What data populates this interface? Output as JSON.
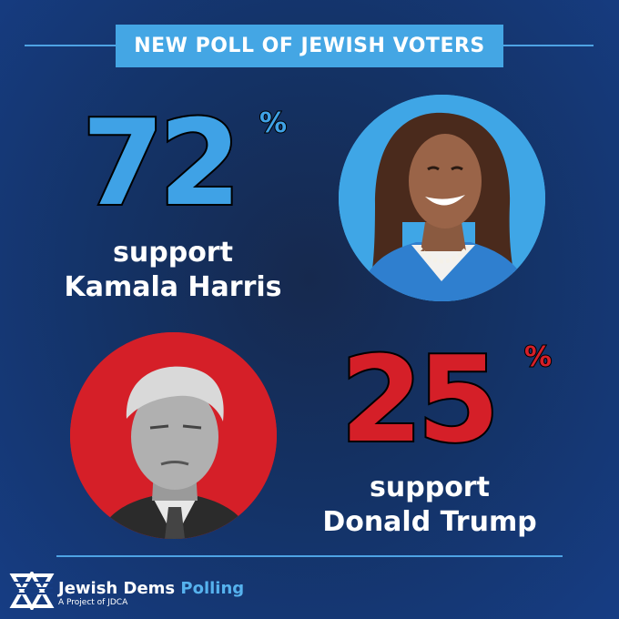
{
  "banner": {
    "title": "NEW POLL OF JEWISH VOTERS"
  },
  "harris": {
    "value": "72",
    "percent_sign": "%",
    "line1": "support",
    "line2": "Kamala Harris"
  },
  "trump": {
    "value": "25",
    "percent_sign": "%",
    "line1": "support",
    "line2": "Donald Trump"
  },
  "footer": {
    "brand_main": "Jewish Dems",
    "brand_accent": "Polling",
    "subtitle": "A Project of JDCA"
  },
  "colors": {
    "background": "#163d84",
    "blue_accent": "#3fa2e6",
    "red_accent": "#d51f28"
  }
}
